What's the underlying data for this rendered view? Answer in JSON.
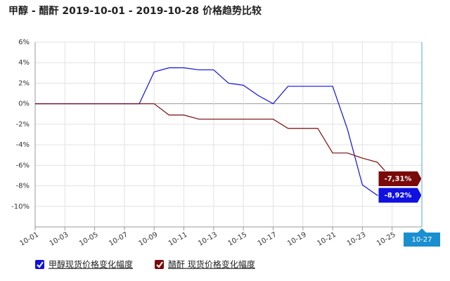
{
  "chart_data": {
    "type": "line",
    "title": "甲醇 - 醋酐 2019-10-01 - 2019-10-28 价格趋势比较",
    "categories": [
      "10-01",
      null,
      "10-03",
      null,
      "10-05",
      null,
      "10-07",
      null,
      "10-09",
      null,
      "10-11",
      null,
      "10-13",
      null,
      "10-15",
      null,
      "10-17",
      null,
      "10-19",
      null,
      "10-21",
      null,
      "10-23",
      null,
      "10-25",
      null,
      "10-27"
    ],
    "series": [
      {
        "name": "甲醇现货价格变化幅度",
        "color": "#1010e0",
        "values": [
          0,
          0,
          0,
          0,
          0,
          0,
          0,
          0,
          3.1,
          3.5,
          3.5,
          3.3,
          3.3,
          2.0,
          1.8,
          0.8,
          0,
          1.7,
          1.7,
          1.7,
          1.7,
          -2.5,
          -7.9,
          -8.92,
          -8.92,
          -8.92,
          -8.92
        ],
        "value_labels": [
          null,
          null,
          null,
          null,
          null,
          null,
          null,
          null,
          null,
          null,
          null,
          null,
          null,
          null,
          null,
          null,
          null,
          null,
          null,
          null,
          null,
          null,
          null,
          null,
          null,
          null,
          "-8,92%"
        ]
      },
      {
        "name": "醋酐 现货价格变化幅度",
        "color": "#7a0a0a",
        "values": [
          0,
          0,
          0,
          0,
          0,
          0,
          0,
          0,
          0,
          -1.1,
          -1.1,
          -1.5,
          -1.5,
          -1.5,
          -1.5,
          -1.5,
          -1.5,
          -2.4,
          -2.4,
          -2.4,
          -4.8,
          -4.8,
          -5.3,
          -5.7,
          -7.31,
          -7.31,
          -7.31
        ],
        "value_labels": [
          null,
          null,
          null,
          null,
          null,
          null,
          null,
          null,
          null,
          null,
          null,
          null,
          null,
          null,
          null,
          null,
          null,
          null,
          null,
          null,
          null,
          null,
          null,
          null,
          null,
          null,
          "-7,31%"
        ]
      }
    ],
    "ylim": [
      -12,
      6
    ],
    "yticks": [
      {
        "value": 6,
        "label": "6%"
      },
      {
        "value": 4,
        "label": "4%"
      },
      {
        "value": 2,
        "label": "2%"
      },
      {
        "value": 0,
        "label": "0%"
      },
      {
        "value": -2,
        "label": "-2%"
      },
      {
        "value": -4,
        "label": "-4%"
      },
      {
        "value": -6,
        "label": "-6%"
      },
      {
        "value": -8,
        "label": "-8%"
      },
      {
        "value": -10,
        "label": "-10%"
      }
    ],
    "grid": true
  }
}
